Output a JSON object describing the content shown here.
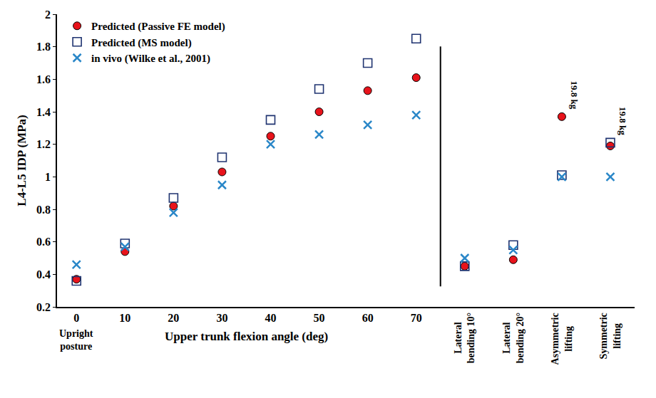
{
  "chart_data": {
    "type": "scatter",
    "y_label": "L4-L5 IDP (MPa)",
    "x_label": "Upper trunk flexion angle (deg)",
    "categories": [
      "0",
      "10",
      "20",
      "30",
      "40",
      "50",
      "60",
      "70",
      "Lateral bending 10°",
      "Lateral bending 20°",
      "Asymmetric lifting",
      "Symmetric lifting"
    ],
    "category_notes": [
      {
        "text": "Upright posture",
        "category": "0"
      }
    ],
    "annotations": [
      {
        "text": "19.8 kg",
        "category": "Asymmetric lifting"
      },
      {
        "text": "19.8 kg",
        "category": "Symmetric lifting"
      }
    ],
    "series": [
      {
        "name": "Predicted (Passive FE model)",
        "color": "#e8131b",
        "marker": "circle",
        "values": [
          0.37,
          0.54,
          0.82,
          1.03,
          1.25,
          1.4,
          1.53,
          1.61,
          0.45,
          0.49,
          1.37,
          1.19
        ]
      },
      {
        "name": "Predicted (MS model)",
        "color": "#1f3370",
        "marker": "square-open",
        "values": [
          0.36,
          0.59,
          0.87,
          1.12,
          1.35,
          1.54,
          1.7,
          1.85,
          0.45,
          0.58,
          1.01,
          1.21
        ]
      },
      {
        "name": "in vivo (Wilke et al., 2001)",
        "color": "#2a87c8",
        "marker": "x",
        "values": [
          0.46,
          0.57,
          0.78,
          0.95,
          1.2,
          1.26,
          1.32,
          1.38,
          0.5,
          0.55,
          1.0,
          1.0
        ]
      }
    ],
    "ylim": [
      0.2,
      2
    ],
    "yticks": [
      0.2,
      0.4,
      0.6,
      0.8,
      1,
      1.2,
      1.4,
      1.6,
      1.8,
      2
    ],
    "grid": false,
    "legend": "upper left"
  }
}
